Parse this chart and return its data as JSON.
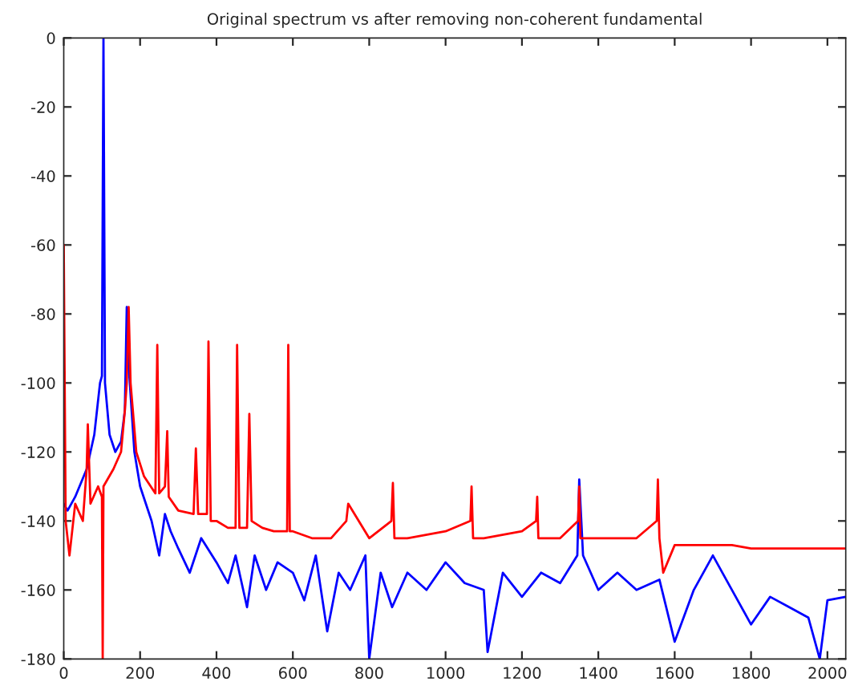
{
  "chart_data": {
    "type": "line",
    "title": "Original spectrum vs after removing non-coherent fundamental",
    "xlim": [
      0,
      2048
    ],
    "ylim": [
      -180,
      0
    ],
    "xticks": [
      0,
      200,
      400,
      600,
      800,
      1000,
      1200,
      1400,
      1600,
      1800,
      2000
    ],
    "yticks": [
      -180,
      -160,
      -140,
      -120,
      -100,
      -80,
      -60,
      -40,
      -20,
      0
    ],
    "grid": false,
    "marker": "none",
    "line_style": "solid",
    "series": [
      {
        "color": "#0000ff",
        "x": [
          0,
          10,
          30,
          60,
          80,
          95,
          100,
          104,
          108,
          120,
          135,
          150,
          160,
          165,
          170,
          185,
          200,
          230,
          250,
          265,
          280,
          300,
          330,
          360,
          400,
          430,
          450,
          480,
          500,
          530,
          560,
          600,
          630,
          660,
          690,
          720,
          750,
          790,
          800,
          830,
          860,
          900,
          950,
          1000,
          1050,
          1100,
          1110,
          1150,
          1200,
          1250,
          1300,
          1345,
          1350,
          1360,
          1400,
          1450,
          1500,
          1560,
          1600,
          1650,
          1700,
          1750,
          1800,
          1850,
          1900,
          1950,
          1980,
          2000,
          2048
        ],
        "values": [
          -135,
          -137,
          -133,
          -125,
          -115,
          -100,
          -98,
          0,
          -100,
          -115,
          -120,
          -117,
          -108,
          -78,
          -95,
          -120,
          -130,
          -140,
          -150,
          -138,
          -143,
          -148,
          -155,
          -145,
          -152,
          -158,
          -150,
          -165,
          -150,
          -160,
          -152,
          -155,
          -163,
          -150,
          -172,
          -155,
          -160,
          -150,
          -180,
          -155,
          -165,
          -155,
          -160,
          -152,
          -158,
          -160,
          -178,
          -155,
          -162,
          -155,
          -158,
          -150,
          -128,
          -150,
          -160,
          -155,
          -160,
          -157,
          -175,
          -160,
          -150,
          -160,
          -170,
          -162,
          -165,
          -168,
          -180,
          -163,
          -162
        ]
      },
      {
        "color": "#ff0000",
        "x": [
          0,
          5,
          15,
          30,
          50,
          60,
          63,
          70,
          90,
          100,
          102,
          104,
          130,
          150,
          160,
          165,
          170,
          175,
          190,
          210,
          240,
          245,
          250,
          265,
          271,
          275,
          300,
          340,
          346,
          352,
          375,
          379,
          385,
          400,
          430,
          450,
          454,
          460,
          480,
          486,
          492,
          520,
          550,
          585,
          588,
          592,
          600,
          650,
          700,
          740,
          745,
          800,
          858,
          862,
          866,
          900,
          1000,
          1065,
          1068,
          1072,
          1100,
          1200,
          1237,
          1240,
          1243,
          1300,
          1347,
          1350,
          1353,
          1400,
          1500,
          1553,
          1556,
          1560,
          1570,
          1600,
          1650,
          1700,
          1750,
          1800,
          1900,
          2000,
          2048
        ],
        "values": [
          -60,
          -140,
          -150,
          -135,
          -140,
          -125,
          -112,
          -135,
          -130,
          -133,
          -180,
          -130,
          -125,
          -120,
          -108,
          -100,
          -78,
          -100,
          -120,
          -127,
          -132,
          -89,
          -132,
          -130,
          -114,
          -133,
          -137,
          -138,
          -119,
          -138,
          -138,
          -88,
          -140,
          -140,
          -142,
          -142,
          -89,
          -142,
          -142,
          -109,
          -140,
          -142,
          -143,
          -143,
          -89,
          -143,
          -143,
          -145,
          -145,
          -140,
          -135,
          -145,
          -140,
          -129,
          -145,
          -145,
          -143,
          -140,
          -130,
          -145,
          -145,
          -143,
          -140,
          -133,
          -145,
          -145,
          -140,
          -130,
          -145,
          -145,
          -145,
          -140,
          -128,
          -145,
          -155,
          -147,
          -147,
          -147,
          -147,
          -148,
          -148,
          -148,
          -148
        ]
      }
    ]
  }
}
